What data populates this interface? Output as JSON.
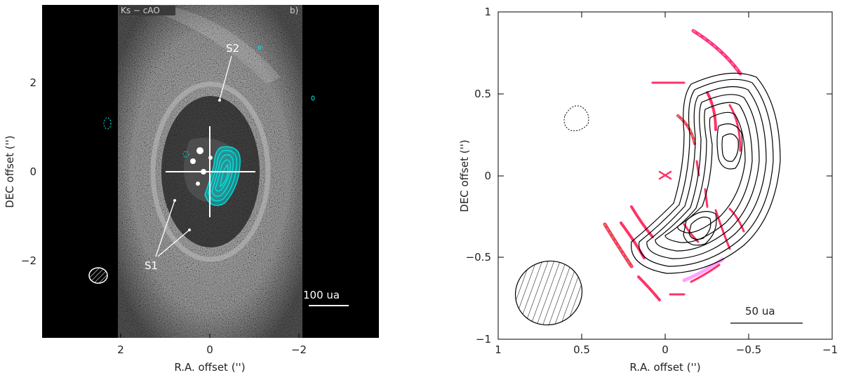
{
  "left_panel": {
    "x_axis_label": "R.A. offset ('')",
    "y_axis_label": "DEC offset ('')",
    "x_ticks": [
      "2",
      "0",
      "−2"
    ],
    "y_ticks": [
      "2",
      "0",
      "−2"
    ],
    "band_label": "Ks − cAO",
    "panel_letter": "b)",
    "annotations": [
      "S2",
      "S1"
    ],
    "scale_bar_label": "100 ua",
    "contour_color": "#00e5e5"
  },
  "right_panel": {
    "x_axis_label": "R.A. offset ('')",
    "y_axis_label": "DEC offset ('')",
    "x_ticks": [
      "1",
      "0.5",
      "0",
      "−0.5",
      "−1"
    ],
    "y_ticks": [
      "1",
      "0.5",
      "0",
      "−0.5",
      "−1"
    ],
    "scale_bar_label": "50 ua",
    "contour_color": "#000000"
  },
  "chart_data": [
    {
      "type": "image",
      "xlim": [
        3.9,
        -3.9
      ],
      "ylim": [
        -3.7,
        3.7
      ],
      "x_ticks": [
        2,
        0,
        -2
      ],
      "y_ticks": [
        2,
        0,
        -2
      ],
      "xlabel": "R.A. offset ('')",
      "ylabel": "DEC offset ('')",
      "annotations": [
        "S1",
        "S2"
      ],
      "scale_bar": "100 ua",
      "corner_text": [
        "Ks − cAO",
        "b)"
      ]
    },
    {
      "type": "contour",
      "xlim": [
        1,
        -1
      ],
      "ylim": [
        -1,
        1
      ],
      "x_ticks": [
        1,
        0.5,
        0,
        -0.5,
        -1
      ],
      "y_ticks": [
        1,
        0.5,
        0,
        -0.5,
        -1
      ],
      "xlabel": "R.A. offset ('')",
      "ylabel": "DEC offset ('')",
      "scale_bar": "50 ua"
    }
  ]
}
